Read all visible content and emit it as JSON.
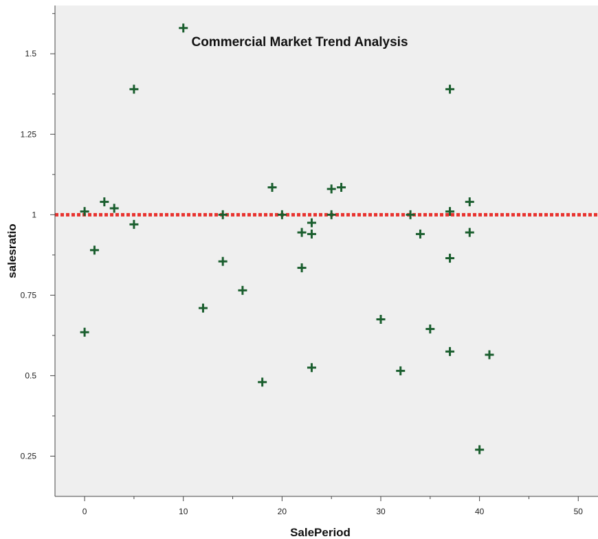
{
  "chart_data": {
    "type": "scatter",
    "title": "Commercial Market Trend Analysis",
    "xlabel": "SalePeriod",
    "ylabel": "salesratio",
    "xlim": [
      -3,
      52
    ],
    "ylim": [
      0.125,
      1.65
    ],
    "xticks": [
      0,
      10,
      20,
      30,
      40,
      50
    ],
    "yticks": [
      0.25,
      0.5,
      0.75,
      1,
      1.25,
      1.5
    ],
    "ytick_labels": [
      "0.25",
      "0.5",
      "0.75",
      "1",
      "1.25",
      "1.5"
    ],
    "grid": false,
    "reference_line": {
      "axis": "y",
      "value": 1.0,
      "style": "dotted",
      "color": "#e8332f"
    },
    "marker": "plus",
    "colors": {
      "marker": "#1a5e2e",
      "plot_background": "#efefef"
    },
    "series": [
      {
        "points": [
          [
            0,
            1.01
          ],
          [
            0,
            0.635
          ],
          [
            1,
            0.89
          ],
          [
            2,
            1.04
          ],
          [
            3,
            1.02
          ],
          [
            5,
            1.39
          ],
          [
            5,
            0.97
          ],
          [
            10,
            1.58
          ],
          [
            12,
            0.71
          ],
          [
            14,
            1.0
          ],
          [
            14,
            0.855
          ],
          [
            16,
            0.765
          ],
          [
            18,
            0.48
          ],
          [
            19,
            1.085
          ],
          [
            20,
            1.0
          ],
          [
            22,
            0.945
          ],
          [
            22,
            0.835
          ],
          [
            23,
            0.975
          ],
          [
            23,
            0.94
          ],
          [
            23,
            0.525
          ],
          [
            25,
            1.08
          ],
          [
            25,
            1.0
          ],
          [
            26,
            1.085
          ],
          [
            30,
            0.675
          ],
          [
            32,
            0.515
          ],
          [
            33,
            1.0
          ],
          [
            34,
            0.94
          ],
          [
            35,
            0.645
          ],
          [
            37,
            1.39
          ],
          [
            37,
            1.01
          ],
          [
            37,
            0.865
          ],
          [
            37,
            0.575
          ],
          [
            39,
            1.04
          ],
          [
            39,
            0.945
          ],
          [
            40,
            0.27
          ],
          [
            41,
            0.565
          ]
        ]
      }
    ]
  }
}
